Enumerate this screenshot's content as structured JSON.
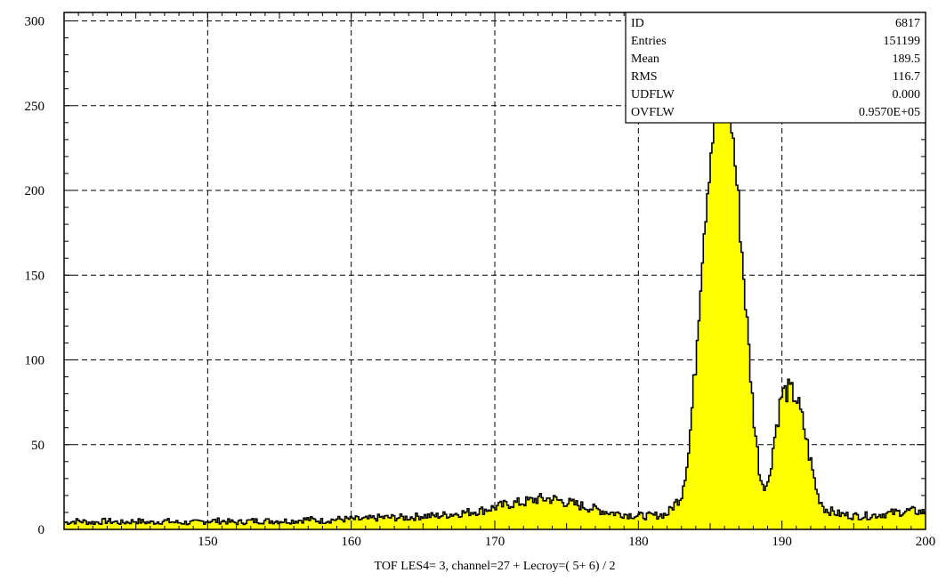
{
  "chart_data": {
    "type": "area",
    "title": "",
    "xlabel": "TOF LES4= 3, channel=27 + Lecroy=( 5+ 6) / 2",
    "ylabel": "",
    "xlim": [
      140,
      200
    ],
    "ylim": [
      0,
      305
    ],
    "x_ticks": [
      150,
      160,
      170,
      180,
      190,
      200
    ],
    "y_ticks": [
      0,
      50,
      100,
      150,
      200,
      250,
      300
    ],
    "grid": true,
    "grid_style": "dashed",
    "fill_color": "#ffff00",
    "line_color": "#000000",
    "stats_box": [
      {
        "label": "ID",
        "value": "6817"
      },
      {
        "label": "Entries",
        "value": "151199"
      },
      {
        "label": "Mean",
        "value": "189.5"
      },
      {
        "label": "RMS",
        "value": "116.7"
      },
      {
        "label": "UDFLW",
        "value": "0.000"
      },
      {
        "label": "OVFLW",
        "value": "0.9570E+05"
      }
    ],
    "series": [
      {
        "x": [
          140,
          141,
          142,
          143,
          144,
          145,
          146,
          147,
          148,
          149,
          150,
          151,
          152,
          153,
          154,
          155,
          156,
          157,
          158,
          159,
          160,
          161,
          162,
          163,
          164,
          165,
          166,
          167,
          168,
          169,
          170,
          171,
          172,
          173,
          174,
          175,
          176,
          177,
          178,
          179,
          180,
          181,
          182,
          183,
          183.5,
          184,
          184.5,
          185,
          185.5,
          186,
          186.5,
          187,
          187.5,
          188,
          188.5,
          189,
          189.5,
          190,
          190.5,
          191,
          191.5,
          192,
          192.5,
          193,
          194,
          195,
          196,
          197,
          198,
          199,
          200
        ],
        "values": [
          4,
          5,
          4,
          5,
          4,
          5,
          4,
          5,
          4,
          4,
          5,
          5,
          4,
          5,
          5,
          5,
          5,
          6,
          5,
          6,
          6,
          6,
          7,
          7,
          7,
          8,
          8,
          9,
          10,
          11,
          13,
          15,
          16,
          18,
          18,
          16,
          14,
          12,
          10,
          9,
          8,
          8,
          9,
          20,
          45,
          100,
          170,
          220,
          255,
          268,
          240,
          190,
          130,
          70,
          30,
          25,
          55,
          80,
          82,
          78,
          62,
          40,
          20,
          12,
          9,
          8,
          8,
          9,
          10,
          11,
          10
        ]
      }
    ]
  }
}
